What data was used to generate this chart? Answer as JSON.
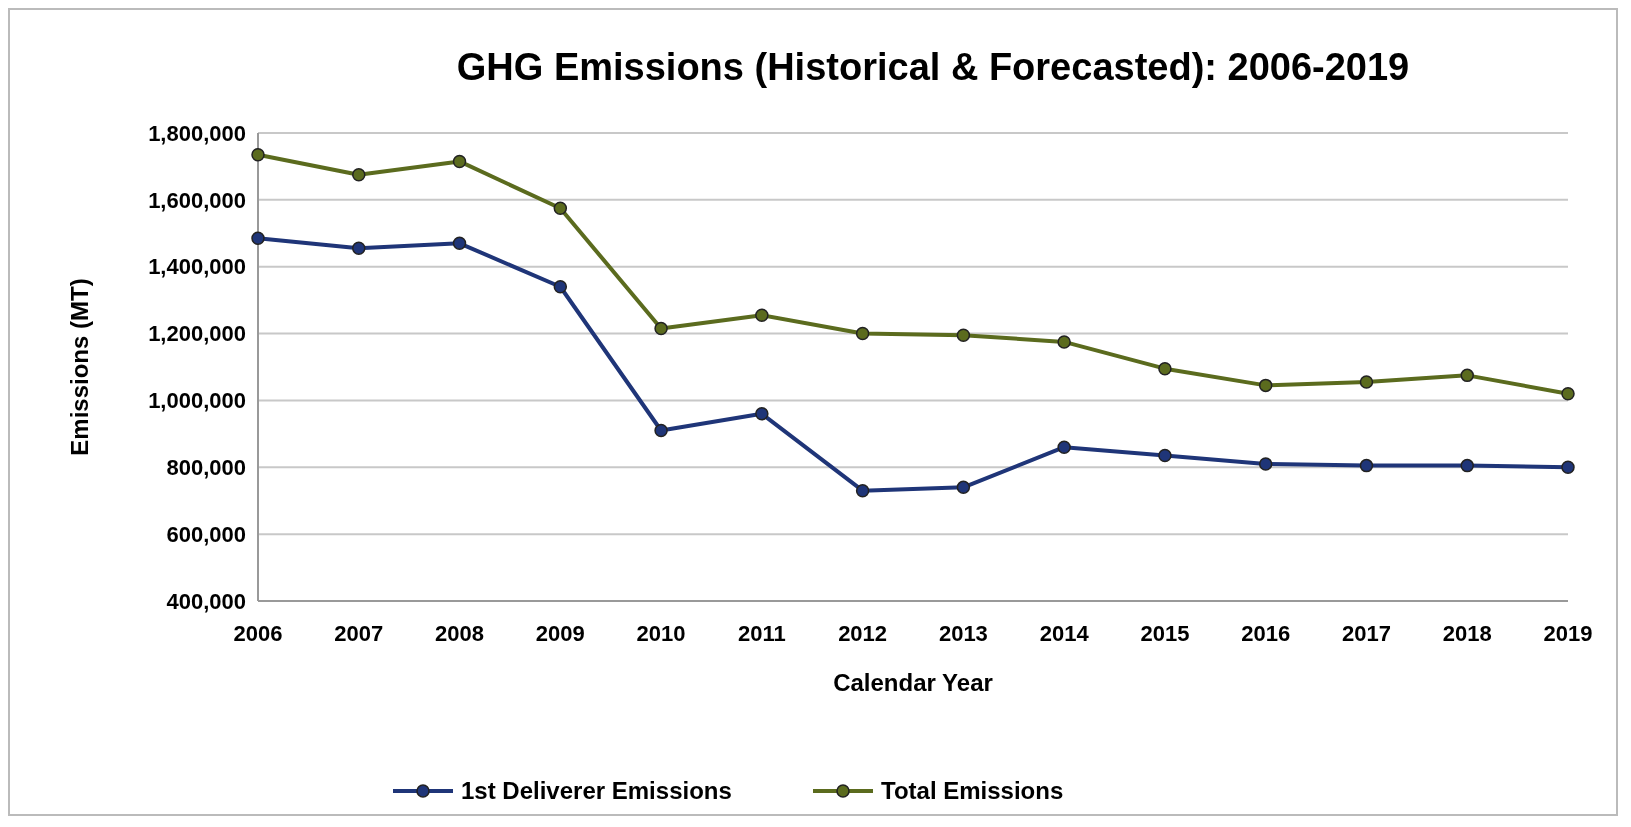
{
  "chart_data": {
    "type": "line",
    "title": "GHG Emissions (Historical & Forecasted): 2006-2019",
    "xlabel": "Calendar Year",
    "ylabel": "Emissions (MT)",
    "categories": [
      "2006",
      "2007",
      "2008",
      "2009",
      "2010",
      "2011",
      "2012",
      "2013",
      "2014",
      "2015",
      "2016",
      "2017",
      "2018",
      "2019"
    ],
    "series": [
      {
        "name": "1st Deliverer Emissions",
        "color": "#1f3578",
        "values": [
          1485000,
          1455000,
          1470000,
          1340000,
          910000,
          960000,
          730000,
          740000,
          860000,
          835000,
          810000,
          805000,
          805000,
          800000
        ]
      },
      {
        "name": "Total Emissions",
        "color": "#5b6b1e",
        "values": [
          1735000,
          1675000,
          1715000,
          1575000,
          1215000,
          1255000,
          1200000,
          1195000,
          1175000,
          1095000,
          1045000,
          1055000,
          1075000,
          1020000
        ]
      }
    ],
    "ylim": [
      400000,
      1800000
    ],
    "yticks": [
      {
        "value": 400000,
        "label": "400,000"
      },
      {
        "value": 600000,
        "label": "600,000"
      },
      {
        "value": 800000,
        "label": "800,000"
      },
      {
        "value": 1000000,
        "label": "1,000,000"
      },
      {
        "value": 1200000,
        "label": "1,200,000"
      },
      {
        "value": 1400000,
        "label": "1,400,000"
      },
      {
        "value": 1600000,
        "label": "1,600,000"
      },
      {
        "value": 1800000,
        "label": "1,800,000"
      }
    ],
    "grid": "y",
    "legend": "bottom",
    "marker": "circle",
    "line_style": "solid"
  }
}
